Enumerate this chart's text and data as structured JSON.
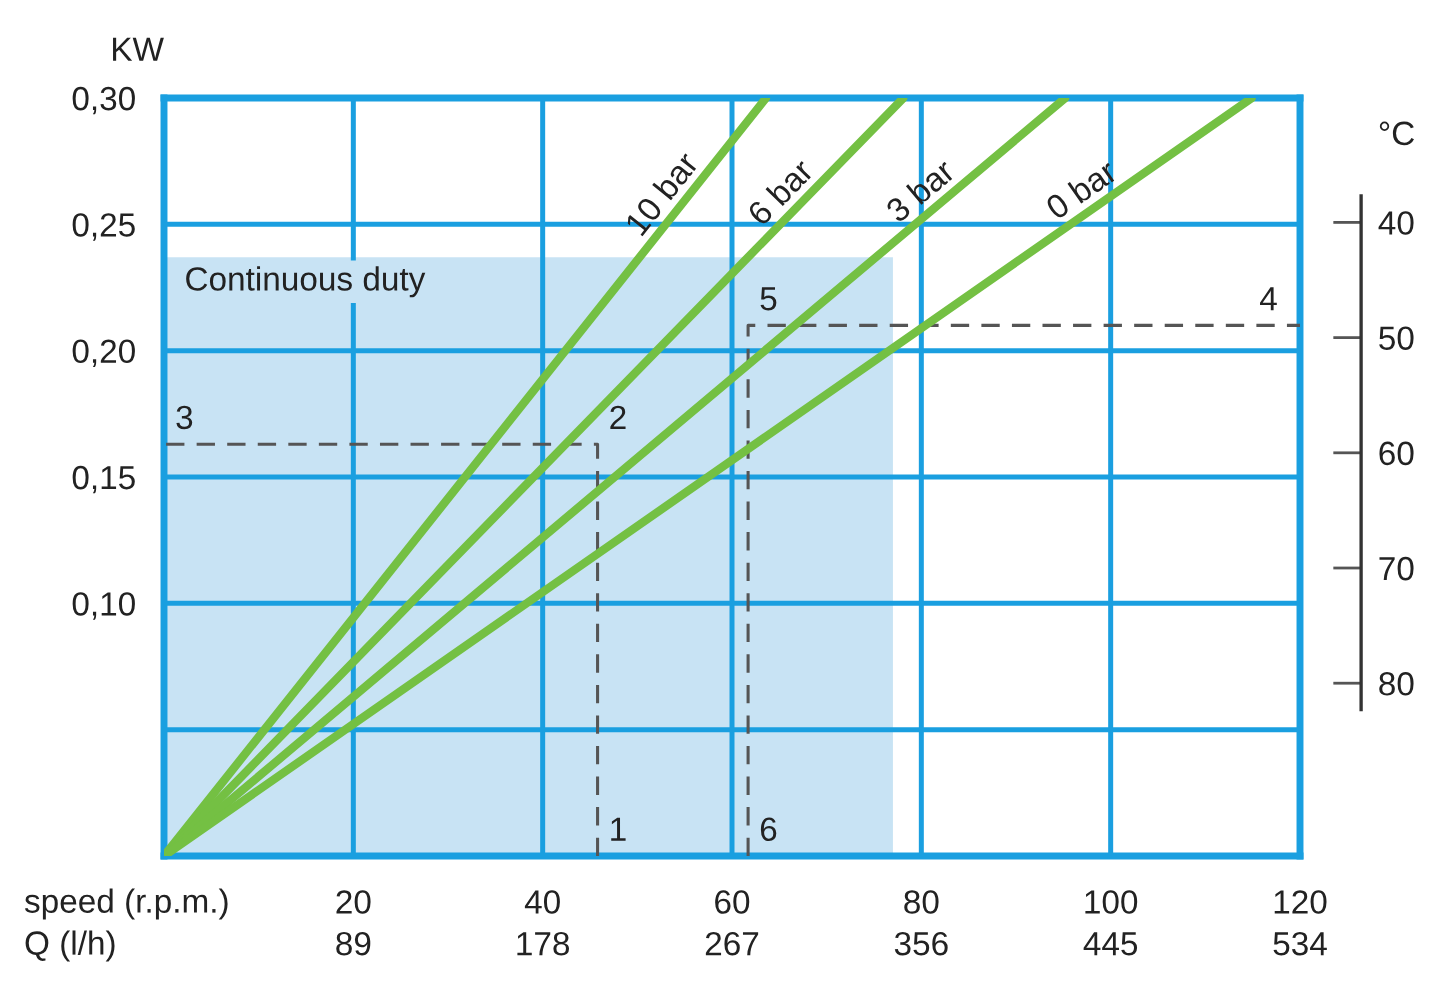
{
  "chart_data": {
    "type": "line",
    "xlabel": "speed (r.p.m.)",
    "x2label": "Q (l/h)",
    "ylabel": "KW",
    "y2label": "°C",
    "xlim": [
      0,
      120
    ],
    "xticks": [
      20,
      40,
      60,
      80,
      100,
      120
    ],
    "x2lim": [
      0,
      534
    ],
    "x2ticks": [
      89,
      178,
      267,
      356,
      445,
      534
    ],
    "ylim": [
      0,
      0.3
    ],
    "yticks": [
      {
        "value": 0,
        "label": null
      },
      {
        "value": 0.05,
        "label": null
      },
      {
        "value": 0.1,
        "label": "0,10"
      },
      {
        "value": 0.15,
        "label": "0,15"
      },
      {
        "value": 0.2,
        "label": "0,20"
      },
      {
        "value": 0.25,
        "label": "0,25"
      },
      {
        "value": 0.3,
        "label": "0,30"
      }
    ],
    "y2lim": [
      95,
      29.2
    ],
    "y2ticks": [
      40,
      50,
      60,
      70,
      80
    ],
    "grid": true,
    "series": [
      {
        "type": "area",
        "name": "Continuous duty",
        "color": "#c8e3f4",
        "x": [
          0,
          77
        ],
        "values": [
          0.237,
          0.237
        ]
      },
      {
        "line_style": "dashed",
        "color": "#555555",
        "x": [
          45.8,
          45.8,
          0
        ],
        "values": [
          0,
          0.163,
          0.163
        ]
      },
      {
        "line_style": "dashed",
        "color": "#555555",
        "x": [
          61.7,
          61.7,
          120
        ],
        "values": [
          0,
          0.21,
          0.21
        ]
      },
      {
        "name": "10 bar",
        "color": "#74c043",
        "x": [
          0,
          63.6
        ],
        "values": [
          0,
          0.3
        ]
      },
      {
        "name": "6 bar",
        "color": "#74c043",
        "x": [
          0,
          78.1
        ],
        "values": [
          0,
          0.3
        ]
      },
      {
        "name": "3 bar",
        "color": "#74c043",
        "x": [
          0,
          95.2
        ],
        "values": [
          0,
          0.3
        ]
      },
      {
        "name": "0 bar",
        "color": "#74c043",
        "x": [
          0,
          114.9
        ],
        "values": [
          0,
          0.3
        ]
      }
    ],
    "annotations": [
      {
        "text": "1",
        "x": 45.8,
        "y": 0
      },
      {
        "text": "2",
        "x": 45.8,
        "y": 0.163
      },
      {
        "text": "3",
        "x": 0,
        "y": 0.163
      },
      {
        "text": "4",
        "x": 120,
        "y": 0.21
      },
      {
        "text": "5",
        "x": 61.7,
        "y": 0.21
      },
      {
        "text": "6",
        "x": 61.7,
        "y": 0
      }
    ]
  }
}
